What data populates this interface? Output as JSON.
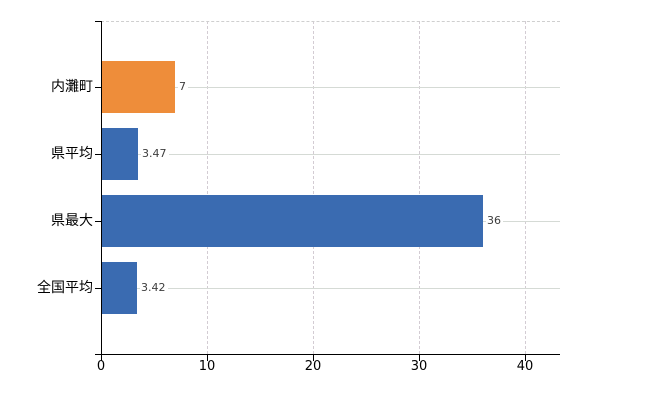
{
  "chart_data": {
    "type": "bar",
    "orientation": "horizontal",
    "title": "",
    "xlabel": "",
    "ylabel": "",
    "categories": [
      "内灘町",
      "県平均",
      "県最大",
      "全国平均"
    ],
    "values": [
      7,
      3.47,
      36,
      3.42
    ],
    "value_labels": [
      "7",
      "3.47",
      "36",
      "3.42"
    ],
    "bar_colors": [
      "#ee8d3a",
      "#3a6bb1",
      "#3a6bb1",
      "#3a6bb1"
    ],
    "highlight_color": "#ee8d3a",
    "base_color": "#3a6bb1",
    "x_ticks": [
      0,
      10,
      20,
      30,
      40
    ],
    "x_tick_labels": [
      "0",
      "10",
      "20",
      "30",
      "40"
    ],
    "xlim": [
      0,
      43.3
    ],
    "grid": true,
    "legend": false,
    "axis_color": "#000000",
    "h_gridline_color": "#d5dad5",
    "v_gridline_color": "#d3ccd3",
    "top_border_color": "#cfcfcf",
    "value_label_color": "#3d3d3d"
  }
}
